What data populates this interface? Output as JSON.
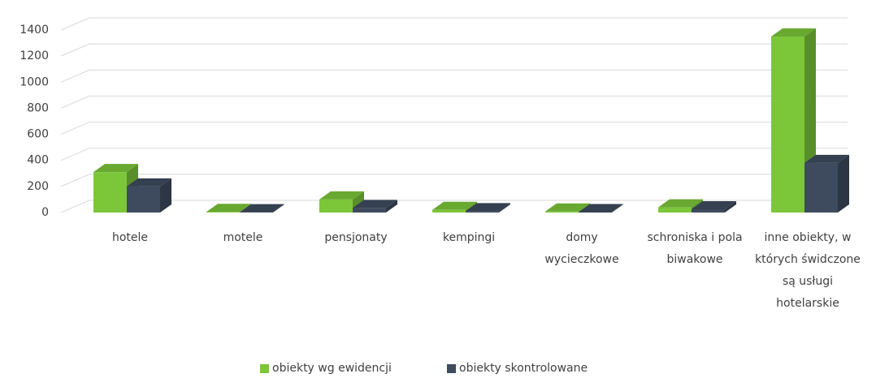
{
  "chart_data": {
    "type": "bar3d",
    "categories": [
      "hotele",
      "motele",
      "pensjonaty",
      "kempingi",
      "domy wycieczkowe",
      "schroniska i pola biwakowe",
      "inne obiekty, w których świdczone są usługi hotelarskie"
    ],
    "series": [
      {
        "name": "obiekty wg ewidencji",
        "color": "#7cc63a",
        "values": [
          310,
          5,
          100,
          20,
          8,
          40,
          1350
        ]
      },
      {
        "name": "obiekty skontrolowane",
        "color": "#3e4b5e",
        "values": [
          200,
          2,
          35,
          10,
          3,
          25,
          380
        ]
      }
    ],
    "ylim": [
      0,
      1400
    ],
    "yticks": [
      0,
      200,
      400,
      600,
      800,
      1000,
      1200,
      1400
    ],
    "grid": true,
    "legend": "bottom"
  }
}
